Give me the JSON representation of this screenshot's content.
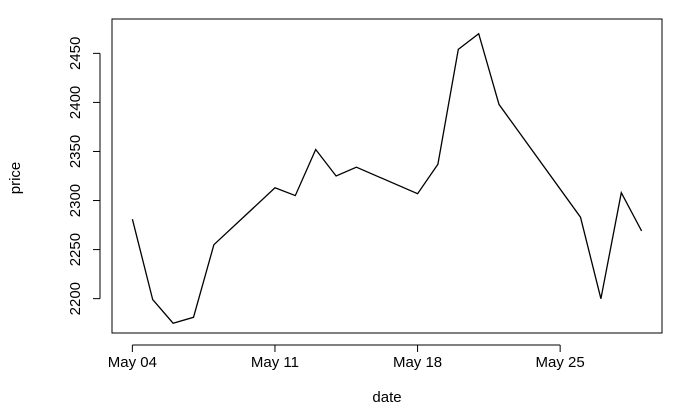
{
  "chart_data": {
    "type": "line",
    "xlabel": "date",
    "ylabel": "price",
    "x_tick_labels": [
      "May 04",
      "May 11",
      "May 18",
      "May 25"
    ],
    "x_tick_values": [
      "2020-05-04",
      "2020-05-11",
      "2020-05-18",
      "2020-05-25"
    ],
    "y_tick_labels": [
      "2200",
      "2250",
      "2300",
      "2350",
      "2400",
      "2450"
    ],
    "y_tick_values": [
      2200,
      2250,
      2300,
      2350,
      2400,
      2450
    ],
    "xlim": [
      "2020-05-03",
      "2020-05-30"
    ],
    "ylim": [
      2165,
      2485
    ],
    "grid": false,
    "line_color": "#000000",
    "series": [
      {
        "x": [
          "2020-05-04",
          "2020-05-05",
          "2020-05-06",
          "2020-05-07",
          "2020-05-08",
          "2020-05-11",
          "2020-05-12",
          "2020-05-13",
          "2020-05-14",
          "2020-05-15",
          "2020-05-18",
          "2020-05-19",
          "2020-05-20",
          "2020-05-21",
          "2020-05-22",
          "2020-05-26",
          "2020-05-27",
          "2020-05-28",
          "2020-05-29"
        ],
        "values": [
          2281,
          2199,
          2175,
          2181,
          2255,
          2313,
          2305,
          2352,
          2325,
          2334,
          2307,
          2337,
          2454,
          2470,
          2398,
          2283,
          2200,
          2308,
          2269
        ]
      }
    ]
  }
}
